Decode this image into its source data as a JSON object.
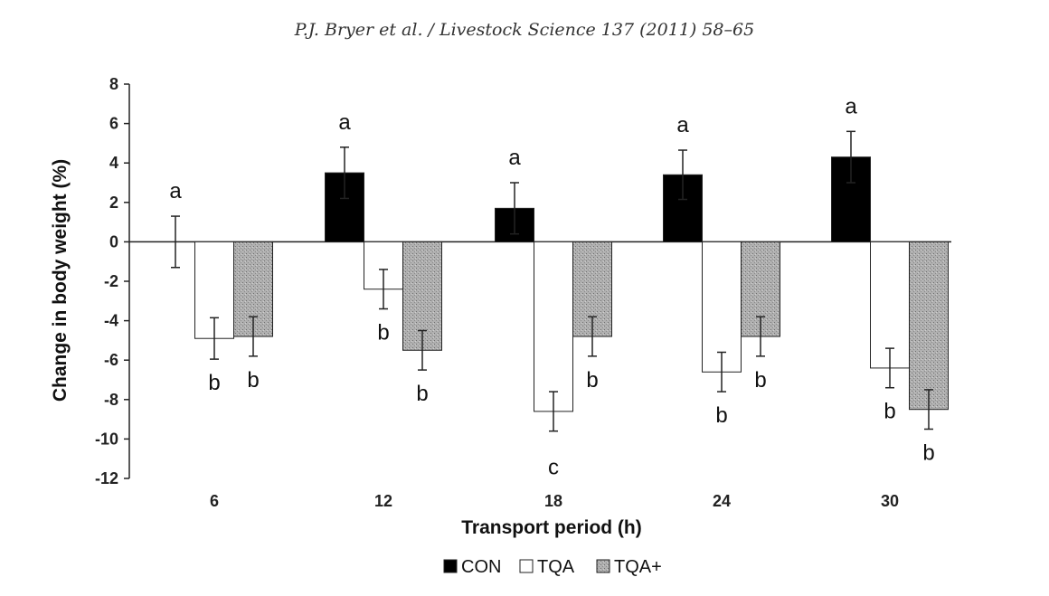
{
  "header": "P.J. Bryer et al. / Livestock Science 137 (2011) 58–65",
  "chart_data": {
    "type": "bar",
    "title": "",
    "xlabel": "Transport period (h)",
    "ylabel": "Change in body weight (%)",
    "ylim": [
      -12,
      8
    ],
    "yticks": [
      8,
      6,
      4,
      2,
      0,
      -2,
      -4,
      -6,
      -8,
      -10,
      -12
    ],
    "grid": false,
    "legend_position": "bottom-center",
    "categories": [
      "6",
      "12",
      "18",
      "24",
      "30"
    ],
    "series": [
      {
        "name": "CON",
        "color": "#000000",
        "pattern": "solid",
        "values": [
          0,
          3.5,
          1.7,
          3.4,
          4.3
        ],
        "errors": [
          1.3,
          1.3,
          1.3,
          1.25,
          1.3
        ],
        "labels": [
          "a",
          "a",
          "a",
          "a",
          "a"
        ]
      },
      {
        "name": "TQA",
        "color": "#ffffff",
        "pattern": "open",
        "values": [
          -4.9,
          -2.4,
          -8.6,
          -6.6,
          -6.4
        ],
        "errors": [
          1.05,
          1.0,
          1.0,
          1.0,
          1.0
        ],
        "labels": [
          "b",
          "b",
          "c",
          "b",
          "b"
        ]
      },
      {
        "name": "TQA+",
        "color": "#a8a8a8",
        "pattern": "speckled",
        "values": [
          -4.8,
          -5.5,
          -4.8,
          -4.8,
          -8.5
        ],
        "errors": [
          1.0,
          1.0,
          1.0,
          1.0,
          1.0
        ],
        "labels": [
          "b",
          "b",
          "b",
          "b",
          "b"
        ]
      }
    ]
  }
}
